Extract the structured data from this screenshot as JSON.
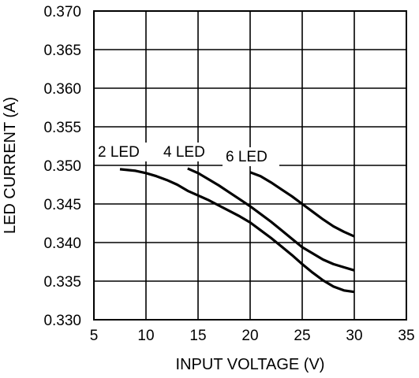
{
  "chart_data": {
    "type": "line",
    "title": "",
    "xlabel": "INPUT VOLTAGE (V)",
    "ylabel": "LED CURRENT (A)",
    "xlim": [
      5,
      35
    ],
    "ylim": [
      0.33,
      0.37
    ],
    "x_ticks": [
      "5",
      "10",
      "15",
      "20",
      "25",
      "30",
      "35"
    ],
    "y_ticks": [
      "0.330",
      "0.335",
      "0.340",
      "0.345",
      "0.350",
      "0.355",
      "0.360",
      "0.365",
      "0.370"
    ],
    "grid": true,
    "series": [
      {
        "name": "2 LED",
        "x": [
          7.5,
          9,
          10,
          11,
          12,
          13,
          13.5,
          14,
          15,
          16,
          17,
          18,
          19,
          20,
          21,
          22,
          23,
          24,
          25,
          26,
          27,
          28,
          29,
          30
        ],
        "y": [
          0.3495,
          0.3493,
          0.349,
          0.3486,
          0.3481,
          0.3475,
          0.3471,
          0.3467,
          0.3461,
          0.3455,
          0.3448,
          0.3441,
          0.3434,
          0.3426,
          0.3416,
          0.3406,
          0.3395,
          0.3384,
          0.3372,
          0.3361,
          0.3351,
          0.3343,
          0.3338,
          0.3336
        ]
      },
      {
        "name": "4 LED",
        "x": [
          14,
          15,
          16,
          17,
          18,
          19,
          20,
          21,
          22,
          23,
          24,
          25,
          26,
          27,
          28,
          29,
          30
        ],
        "y": [
          0.3496,
          0.349,
          0.3482,
          0.3474,
          0.3465,
          0.3456,
          0.3447,
          0.3437,
          0.3427,
          0.3416,
          0.3405,
          0.3394,
          0.3386,
          0.3378,
          0.3372,
          0.3368,
          0.3364
        ]
      },
      {
        "name": "6 LED",
        "x": [
          20,
          21,
          22,
          23,
          24,
          25,
          26,
          27,
          28,
          29,
          30
        ],
        "y": [
          0.3491,
          0.3486,
          0.3478,
          0.3469,
          0.346,
          0.345,
          0.344,
          0.343,
          0.3421,
          0.3414,
          0.3408
        ]
      }
    ],
    "annotations": [
      "2 LED",
      "4 LED",
      "6 LED"
    ]
  }
}
